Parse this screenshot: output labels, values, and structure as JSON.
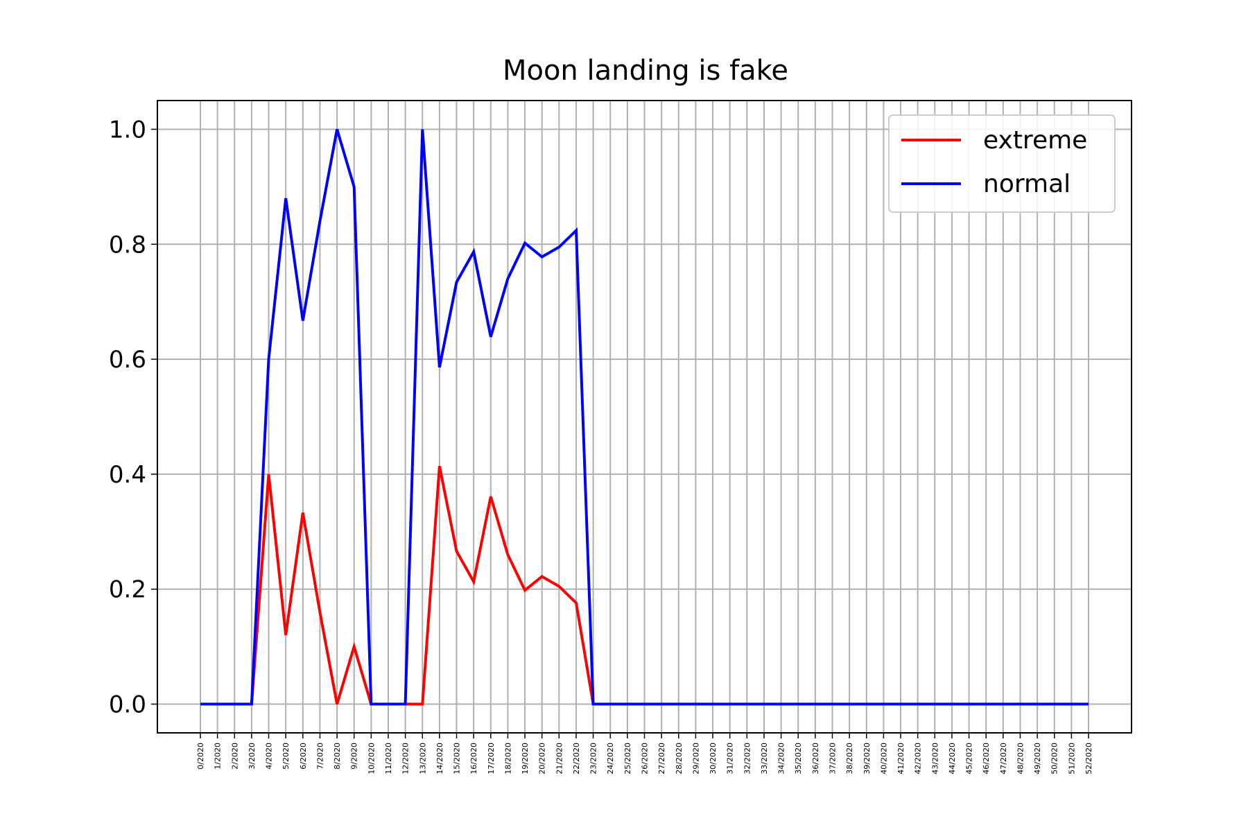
{
  "chart_data": {
    "type": "line",
    "title": "Moon landing is fake",
    "xlabel": "",
    "ylabel": "",
    "x": [
      "0/2020",
      "1/2020",
      "2/2020",
      "3/2020",
      "4/2020",
      "5/2020",
      "6/2020",
      "7/2020",
      "8/2020",
      "9/2020",
      "10/2020",
      "11/2020",
      "12/2020",
      "13/2020",
      "14/2020",
      "15/2020",
      "16/2020",
      "17/2020",
      "18/2020",
      "19/2020",
      "20/2020",
      "21/2020",
      "22/2020",
      "23/2020",
      "24/2020",
      "25/2020",
      "26/2020",
      "27/2020",
      "28/2020",
      "29/2020",
      "30/2020",
      "31/2020",
      "32/2020",
      "33/2020",
      "34/2020",
      "35/2020",
      "36/2020",
      "37/2020",
      "38/2020",
      "39/2020",
      "40/2020",
      "41/2020",
      "42/2020",
      "43/2020",
      "44/2020",
      "45/2020",
      "46/2020",
      "47/2020",
      "48/2020",
      "49/2020",
      "50/2020",
      "51/2020",
      "52/2020"
    ],
    "series": [
      {
        "name": "extreme",
        "color": "#ff0000",
        "values": [
          0,
          0,
          0,
          0,
          0.4,
          0.12,
          0.333,
          0.16,
          0,
          0.1,
          0,
          0,
          0,
          0,
          0.414,
          0.266,
          0.213,
          0.361,
          0.26,
          0.198,
          0.222,
          0.205,
          0.176,
          0,
          0,
          0,
          0,
          0,
          0,
          0,
          0,
          0,
          0,
          0,
          0,
          0,
          0,
          0,
          0,
          0,
          0,
          0,
          0,
          0,
          0,
          0,
          0,
          0,
          0,
          0,
          0,
          0,
          0
        ]
      },
      {
        "name": "normal",
        "color": "#0000ff",
        "values": [
          0,
          0,
          0,
          0,
          0.6,
          0.88,
          0.667,
          0.84,
          1.0,
          0.9,
          0,
          0,
          0,
          1.0,
          0.586,
          0.734,
          0.787,
          0.639,
          0.74,
          0.802,
          0.778,
          0.795,
          0.824,
          0,
          0,
          0,
          0,
          0,
          0,
          0,
          0,
          0,
          0,
          0,
          0,
          0,
          0,
          0,
          0,
          0,
          0,
          0,
          0,
          0,
          0,
          0,
          0,
          0,
          0,
          0,
          0,
          0,
          0
        ]
      }
    ],
    "ylim": [
      -0.05,
      1.05
    ],
    "yticks": [
      "0.0",
      "0.2",
      "0.4",
      "0.6",
      "0.8",
      "1.0"
    ],
    "grid": true,
    "legend": "top-right"
  }
}
